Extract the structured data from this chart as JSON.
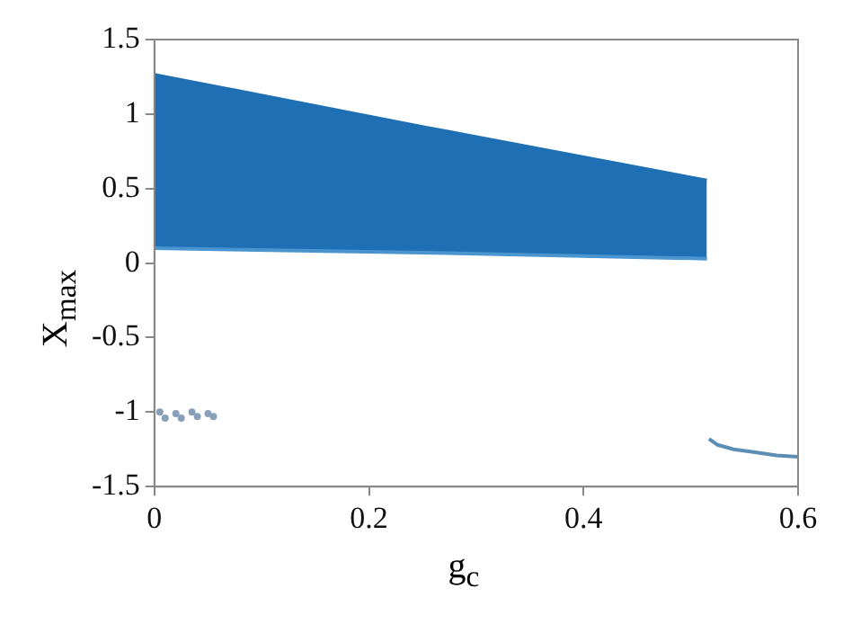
{
  "chart_data": {
    "type": "scatter",
    "xlabel": "g$_{c}$",
    "ylabel": "X$_{max}$",
    "xlim": [
      0,
      0.6
    ],
    "xticks": [
      0,
      0.2,
      0.4,
      0.6
    ],
    "ylim": [
      -1.5,
      1.5
    ],
    "yticks": [
      -1.5,
      -1,
      -0.5,
      0,
      0.5,
      1,
      1.5
    ],
    "grid": false,
    "legend": false,
    "series": [
      {
        "type": "line",
        "color": "#4a94cf",
        "marker": "none",
        "x": [
          0,
          0.25,
          0.515
        ],
        "values": [
          0.1,
          0.07,
          0.03
        ]
      },
      {
        "type": "area",
        "color": "#1f6fb4",
        "x": [
          0,
          0.25,
          0.515
        ],
        "values": [
          1.27,
          0.92,
          0.56
        ]
      },
      {
        "type": "scatter",
        "color": "#8aa0b8",
        "marker": "circle",
        "x": [
          0.005,
          0.01,
          0.02,
          0.025,
          0.035,
          0.04,
          0.05,
          0.055
        ],
        "values": [
          -1.0,
          -1.04,
          -1.01,
          -1.04,
          -1.0,
          -1.03,
          -1.01,
          -1.03
        ]
      },
      {
        "type": "line",
        "color": "#5b8db5",
        "marker": "none",
        "x": [
          0.517,
          0.525,
          0.54,
          0.56,
          0.58,
          0.6
        ],
        "values": [
          -1.18,
          -1.22,
          -1.25,
          -1.27,
          -1.29,
          -1.3
        ]
      }
    ]
  }
}
